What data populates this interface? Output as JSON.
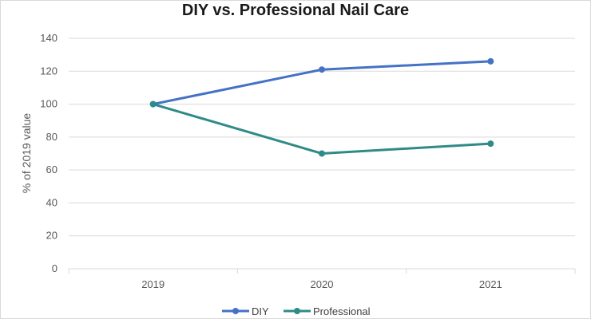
{
  "chart_data": {
    "type": "line",
    "title": "DIY vs. Professional Nail Care",
    "xlabel": "",
    "ylabel": "% of 2019 value",
    "categories": [
      "2019",
      "2020",
      "2021"
    ],
    "ylim": [
      0,
      140
    ],
    "yticks": [
      "0",
      "20",
      "40",
      "60",
      "80",
      "100",
      "120",
      "140"
    ],
    "grid": true,
    "legend_position": "bottom",
    "series": [
      {
        "name": "DIY",
        "values": [
          100,
          121,
          126
        ],
        "color": "#4472c4"
      },
      {
        "name": "Professional",
        "values": [
          100,
          70,
          76
        ],
        "color": "#2e8b87"
      }
    ]
  }
}
